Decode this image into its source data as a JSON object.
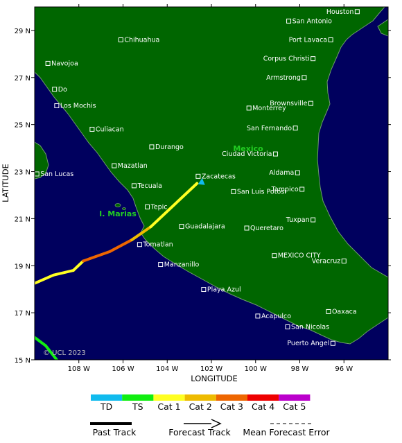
{
  "map": {
    "xlabel": "LONGITUDE",
    "ylabel": "LATITUDE",
    "copyright": "© UCL 2023",
    "country_label": "Mexico",
    "island_label": "I. Marias",
    "lon_range": [
      -110,
      -94
    ],
    "lat_range": [
      15,
      30
    ],
    "lon_ticks": [
      {
        "value": -108,
        "label": "108 W"
      },
      {
        "value": -106,
        "label": "106 W"
      },
      {
        "value": -104,
        "label": "104 W"
      },
      {
        "value": -102,
        "label": "102 W"
      },
      {
        "value": -100,
        "label": "100 W"
      },
      {
        "value": -98,
        "label": "98 W"
      },
      {
        "value": -96,
        "label": "96 W"
      }
    ],
    "lat_ticks": [
      {
        "value": 15,
        "label": "15 N"
      },
      {
        "value": 17,
        "label": "17 N"
      },
      {
        "value": 19,
        "label": "19 N"
      },
      {
        "value": 21,
        "label": "21 N"
      },
      {
        "value": 23,
        "label": "23 N"
      },
      {
        "value": 25,
        "label": "25 N"
      },
      {
        "value": 27,
        "label": "27 N"
      },
      {
        "value": 29,
        "label": "29 N"
      }
    ],
    "colors": {
      "land": "#006600",
      "ocean": "#00005e",
      "outline": "#6e9a6e",
      "city": "#ffffff"
    }
  },
  "cities": [
    {
      "name": "Houston",
      "lon": -95.4,
      "lat": 29.8,
      "anchor": "end"
    },
    {
      "name": "San Antonio",
      "lon": -98.5,
      "lat": 29.4,
      "anchor": "start"
    },
    {
      "name": "Port Lavaca",
      "lon": -96.6,
      "lat": 28.6,
      "anchor": "end"
    },
    {
      "name": "Chihuahua",
      "lon": -106.1,
      "lat": 28.6,
      "anchor": "start"
    },
    {
      "name": "Corpus Christi",
      "lon": -97.4,
      "lat": 27.8,
      "anchor": "end"
    },
    {
      "name": "Navojoa",
      "lon": -109.4,
      "lat": 27.6,
      "anchor": "start"
    },
    {
      "name": "Armstrong",
      "lon": -97.8,
      "lat": 27.0,
      "anchor": "end"
    },
    {
      "name": "Do",
      "lon": -109.1,
      "lat": 26.5,
      "anchor": "start"
    },
    {
      "name": "Brownsville",
      "lon": -97.5,
      "lat": 25.9,
      "anchor": "end"
    },
    {
      "name": "Los Mochis",
      "lon": -109.0,
      "lat": 25.8,
      "anchor": "start"
    },
    {
      "name": "Monterrey",
      "lon": -100.3,
      "lat": 25.7,
      "anchor": "start"
    },
    {
      "name": "Culiacan",
      "lon": -107.4,
      "lat": 24.8,
      "anchor": "start"
    },
    {
      "name": "San Fernando",
      "lon": -98.2,
      "lat": 24.85,
      "anchor": "end"
    },
    {
      "name": "Durango",
      "lon": -104.7,
      "lat": 24.05,
      "anchor": "start"
    },
    {
      "name": "Ciudad Victoria",
      "lon": -99.1,
      "lat": 23.75,
      "anchor": "end"
    },
    {
      "name": "Mazatlan",
      "lon": -106.4,
      "lat": 23.25,
      "anchor": "start"
    },
    {
      "name": "Aldama",
      "lon": -98.1,
      "lat": 22.95,
      "anchor": "end"
    },
    {
      "name": "San Lucas",
      "lon": -109.9,
      "lat": 22.9,
      "anchor": "start"
    },
    {
      "name": "Zacatecas",
      "lon": -102.6,
      "lat": 22.8,
      "anchor": "start"
    },
    {
      "name": "Tecuala",
      "lon": -105.5,
      "lat": 22.4,
      "anchor": "start"
    },
    {
      "name": "Tampico",
      "lon": -97.9,
      "lat": 22.25,
      "anchor": "end"
    },
    {
      "name": "San Luis Potosi",
      "lon": -101.0,
      "lat": 22.15,
      "anchor": "start"
    },
    {
      "name": "Tepic",
      "lon": -104.9,
      "lat": 21.5,
      "anchor": "start"
    },
    {
      "name": "Tuxpan",
      "lon": -97.4,
      "lat": 20.95,
      "anchor": "end"
    },
    {
      "name": "Guadalajara",
      "lon": -103.35,
      "lat": 20.67,
      "anchor": "start"
    },
    {
      "name": "Queretaro",
      "lon": -100.4,
      "lat": 20.6,
      "anchor": "start"
    },
    {
      "name": "Tomatlan",
      "lon": -105.25,
      "lat": 19.9,
      "anchor": "start"
    },
    {
      "name": "MEXICO CITY",
      "lon": -99.15,
      "lat": 19.43,
      "anchor": "start"
    },
    {
      "name": "Veracruz",
      "lon": -96.0,
      "lat": 19.2,
      "anchor": "end"
    },
    {
      "name": "Manzanillo",
      "lon": -104.3,
      "lat": 19.05,
      "anchor": "start"
    },
    {
      "name": "Playa Azul",
      "lon": -102.35,
      "lat": 17.99,
      "anchor": "start"
    },
    {
      "name": "Oaxaca",
      "lon": -96.7,
      "lat": 17.05,
      "anchor": "start"
    },
    {
      "name": "Acapulco",
      "lon": -99.9,
      "lat": 16.86,
      "anchor": "start"
    },
    {
      "name": "San Nicolas",
      "lon": -98.55,
      "lat": 16.4,
      "anchor": "start"
    },
    {
      "name": "Puerto Angel",
      "lon": -96.5,
      "lat": 15.7,
      "anchor": "end"
    }
  ],
  "forecast_track": [
    {
      "lon": -110.0,
      "lat": 18.25,
      "category": "Cat 1"
    },
    {
      "lon": -109.15,
      "lat": 18.6,
      "category": "Cat 1"
    },
    {
      "lon": -108.25,
      "lat": 18.8,
      "category": "Cat 1"
    },
    {
      "lon": -107.8,
      "lat": 19.2,
      "category": "Cat 1"
    },
    {
      "lon": -106.6,
      "lat": 19.6,
      "category": "Cat 3"
    },
    {
      "lon": -105.6,
      "lat": 20.1,
      "category": "Cat 3"
    },
    {
      "lon": -104.75,
      "lat": 20.65,
      "category": "Cat 2"
    },
    {
      "lon": -102.65,
      "lat": 22.5,
      "category": "Cat 1"
    }
  ],
  "past_track": [
    {
      "lon": -110.0,
      "lat": 15.95,
      "category": "TS"
    },
    {
      "lon": -109.5,
      "lat": 15.6,
      "category": "TS"
    },
    {
      "lon": -109.0,
      "lat": 15.0,
      "category": "TS"
    }
  ],
  "storm_position": {
    "lon": -102.45,
    "lat": 22.55,
    "category": "TD"
  },
  "legend": {
    "categories": [
      {
        "label": "TD",
        "color": "#11bbee"
      },
      {
        "label": "TS",
        "color": "#11ee11"
      },
      {
        "label": "Cat 1",
        "color": "#ffff22"
      },
      {
        "label": "Cat 2",
        "color": "#eebb00"
      },
      {
        "label": "Cat 3",
        "color": "#ee6600"
      },
      {
        "label": "Cat 4",
        "color": "#ee0000"
      },
      {
        "label": "Cat 5",
        "color": "#bb00cc"
      }
    ],
    "past_track": "Past Track",
    "forecast_track": "Forecast Track",
    "mean_error": "Mean Forecast Error"
  }
}
